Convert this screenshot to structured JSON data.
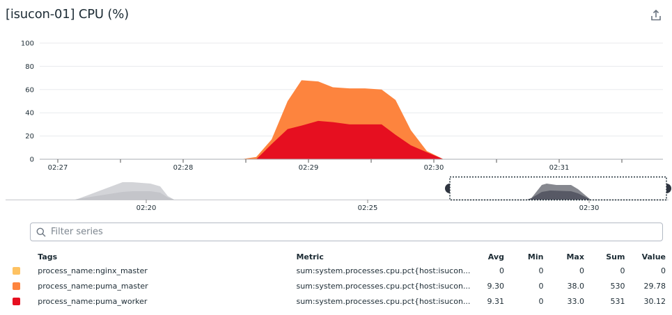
{
  "header": {
    "title": "[isucon-01] CPU (%)",
    "export_icon": "share-export-icon"
  },
  "colors": {
    "nginx_master": "#fec262",
    "puma_master": "#fd843e",
    "puma_worker": "#e60f20",
    "grid": "#e8eaed",
    "axis": "#a9adb3",
    "navigator_light": "#cfd0d4",
    "navigator_light_lower": "#c2c3c8",
    "navigator_dark": "#85878e",
    "navigator_dark_lower": "#565864"
  },
  "chart_data": {
    "type": "area",
    "stacked": true,
    "title": "[isucon-01] CPU (%)",
    "xlabel": "",
    "ylabel": "",
    "ylim": [
      0,
      100
    ],
    "yticks": [
      0,
      20,
      40,
      60,
      80,
      100
    ],
    "xticks": [
      "02:27",
      "02:28",
      "02:29",
      "02:30",
      "02:31"
    ],
    "grid": true,
    "legend_position": "bottom-table",
    "x": [
      "02:28:30",
      "02:28:37",
      "02:28:45",
      "02:28:52",
      "02:28:59",
      "02:29:07",
      "02:29:14",
      "02:29:22",
      "02:29:29",
      "02:29:36",
      "02:29:44",
      "02:29:51",
      "02:29:59",
      "02:30:06"
    ],
    "series": [
      {
        "name": "process_name:puma_worker",
        "values": [
          0,
          0,
          13,
          26,
          29,
          33,
          32,
          30,
          30,
          30,
          21,
          12,
          6,
          0
        ]
      },
      {
        "name": "process_name:puma_master",
        "values": [
          0,
          2,
          4,
          24,
          39,
          34,
          30,
          31,
          31,
          30,
          30,
          13,
          1,
          0
        ]
      },
      {
        "name": "process_name:nginx_master",
        "values": [
          0,
          0,
          0,
          0,
          0,
          0,
          0,
          0,
          0,
          0,
          0,
          0,
          0,
          0
        ]
      }
    ],
    "stacked_totals": [
      0,
      2,
      17,
      50,
      68,
      67,
      62,
      61,
      61,
      60,
      51,
      25,
      7,
      0
    ],
    "navigator": {
      "xticks": [
        "02:20",
        "02:25",
        "02:30"
      ],
      "selection": [
        "02:26:50",
        "02:31:45"
      ]
    }
  },
  "search": {
    "placeholder": "Filter series",
    "value": ""
  },
  "legend": {
    "headers": {
      "tags": "Tags",
      "metric": "Metric",
      "avg": "Avg",
      "min": "Min",
      "max": "Max",
      "sum": "Sum",
      "value": "Value"
    },
    "rows": [
      {
        "tags": "process_name:nginx_master",
        "metric": "sum:system.processes.cpu.pct{host:isucon...",
        "avg": "0",
        "min": "0",
        "max": "0",
        "sum": "0",
        "value": "0",
        "color": "#fec262"
      },
      {
        "tags": "process_name:puma_master",
        "metric": "sum:system.processes.cpu.pct{host:isucon...",
        "avg": "9.30",
        "min": "0",
        "max": "38.0",
        "sum": "530",
        "value": "29.78",
        "color": "#fd843e"
      },
      {
        "tags": "process_name:puma_worker",
        "metric": "sum:system.processes.cpu.pct{host:isucon...",
        "avg": "9.31",
        "min": "0",
        "max": "33.0",
        "sum": "531",
        "value": "30.12",
        "color": "#e60f20"
      }
    ]
  }
}
